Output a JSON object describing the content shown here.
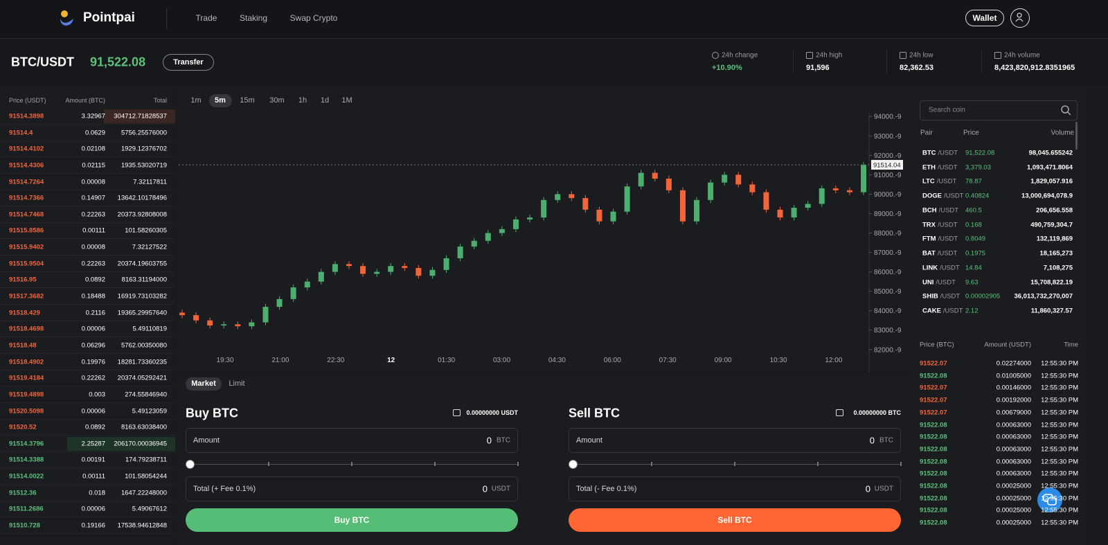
{
  "header": {
    "brand": "Pointpai",
    "nav": [
      "Trade",
      "Staking",
      "Swap Crypto"
    ],
    "wallet": "Wallet"
  },
  "ticker": {
    "pair": "BTC/USDT",
    "price": "91,522.08",
    "transfer": "Transfer",
    "stats": [
      {
        "label": "24h change",
        "value": "+10.90%"
      },
      {
        "label": "24h high",
        "value": "91,596"
      },
      {
        "label": "24h low",
        "value": "82,362.53"
      },
      {
        "label": "24h volume",
        "value": "8,423,820,912.8351965"
      }
    ]
  },
  "order_book": {
    "columns": [
      "Price (USDT)",
      "Amount (BTC)",
      "Total"
    ],
    "asks": [
      [
        "91514.3898",
        "3.32967",
        "304712.71828537"
      ],
      [
        "91514.4",
        "0.0629",
        "5756.25576000"
      ],
      [
        "91514.4102",
        "0.02108",
        "1929.12376702"
      ],
      [
        "91514.4306",
        "0.02115",
        "1935.53020719"
      ],
      [
        "91514.7264",
        "0.00008",
        "7.32117811"
      ],
      [
        "91514.7366",
        "0.14907",
        "13642.10178496"
      ],
      [
        "91514.7468",
        "0.22263",
        "20373.92808008"
      ],
      [
        "91515.8586",
        "0.00111",
        "101.58260305"
      ],
      [
        "91515.9402",
        "0.00008",
        "7.32127522"
      ],
      [
        "91515.9504",
        "0.22263",
        "20374.19603755"
      ],
      [
        "91516.95",
        "0.0892",
        "8163.31194000"
      ],
      [
        "91517.3682",
        "0.18488",
        "16919.73103282"
      ],
      [
        "91518.429",
        "0.2116",
        "19365.29957640"
      ],
      [
        "91518.4698",
        "0.00006",
        "5.49110819"
      ],
      [
        "91518.48",
        "0.06296",
        "5762.00350080"
      ],
      [
        "91518.4902",
        "0.19976",
        "18281.73360235"
      ],
      [
        "91519.4184",
        "0.22262",
        "20374.05292421"
      ],
      [
        "91519.4898",
        "0.003",
        "274.55846940"
      ],
      [
        "91520.5098",
        "0.00006",
        "5.49123059"
      ],
      [
        "91520.52",
        "0.0892",
        "8163.63038400"
      ]
    ],
    "bids": [
      [
        "91514.3796",
        "2.25287",
        "206170.00036945"
      ],
      [
        "91514.3388",
        "0.00191",
        "174.79238711"
      ],
      [
        "91514.0022",
        "0.00111",
        "101.58054244"
      ],
      [
        "91512.36",
        "0.018",
        "1647.22248000"
      ],
      [
        "91511.2686",
        "0.00006",
        "5.49067612"
      ],
      [
        "91510.728",
        "0.19166",
        "17538.94612848"
      ]
    ]
  },
  "chart_data": {
    "type": "candlestick",
    "intervals": [
      "1m",
      "5m",
      "15m",
      "30m",
      "1h",
      "1d",
      "1M"
    ],
    "active_interval": 1,
    "x_labels": [
      "19:30",
      "21:00",
      "22:30",
      "12",
      "01:30",
      "03:00",
      "04:30",
      "06:00",
      "07:30",
      "09:00",
      "10:30",
      "12:00"
    ],
    "up_color": "#4caf6e",
    "down_color": "#f2643a",
    "ylim": [
      81600,
      94400
    ],
    "yticks": [
      {
        "value": 94000,
        "label": "94000.-9"
      },
      {
        "value": 93000,
        "label": "93000.-9"
      },
      {
        "value": 92000,
        "label": "92000.-9"
      },
      {
        "value": 91000,
        "label": "91000.-9"
      },
      {
        "value": 90000,
        "label": "90000.-9"
      },
      {
        "value": 89000,
        "label": "89000.-9"
      },
      {
        "value": 88000,
        "label": "88000.-9"
      },
      {
        "value": 87000,
        "label": "87000.-9"
      },
      {
        "value": 86000,
        "label": "86000.-9"
      },
      {
        "value": 85000,
        "label": "85000.-9"
      },
      {
        "value": 84000,
        "label": "84000.-9"
      },
      {
        "value": 83000,
        "label": "83000.-9"
      },
      {
        "value": 82000,
        "label": "82000.-9"
      }
    ],
    "last_price": 91514.04,
    "candles": [
      [
        83900,
        84050,
        83620,
        83770
      ],
      [
        83770,
        83920,
        83350,
        83500
      ],
      [
        83500,
        83650,
        83090,
        83240
      ],
      [
        83240,
        83450,
        83090,
        83300
      ],
      [
        83300,
        83450,
        83050,
        83200
      ],
      [
        83200,
        83550,
        83050,
        83400
      ],
      [
        83400,
        84350,
        83250,
        84200
      ],
      [
        84200,
        84750,
        84050,
        84600
      ],
      [
        84600,
        85350,
        84450,
        85200
      ],
      [
        85200,
        85650,
        85050,
        85500
      ],
      [
        85500,
        86150,
        85350,
        86000
      ],
      [
        86000,
        86550,
        85850,
        86400
      ],
      [
        86400,
        86550,
        86150,
        86300
      ],
      [
        86300,
        86450,
        85750,
        85900
      ],
      [
        85900,
        86150,
        85750,
        86000
      ],
      [
        86000,
        86450,
        85850,
        86300
      ],
      [
        86300,
        86450,
        86050,
        86200
      ],
      [
        86200,
        86350,
        85650,
        85800
      ],
      [
        85800,
        86250,
        85650,
        86100
      ],
      [
        86100,
        86850,
        85950,
        86700
      ],
      [
        86700,
        87450,
        86550,
        87300
      ],
      [
        87300,
        87750,
        87150,
        87600
      ],
      [
        87600,
        88150,
        87450,
        88000
      ],
      [
        88000,
        88350,
        87850,
        88200
      ],
      [
        88200,
        88850,
        88050,
        88700
      ],
      [
        88700,
        88950,
        88550,
        88800
      ],
      [
        88800,
        89850,
        88650,
        89700
      ],
      [
        89700,
        90150,
        89550,
        90000
      ],
      [
        90000,
        90150,
        89650,
        89800
      ],
      [
        89800,
        89950,
        89050,
        89200
      ],
      [
        89200,
        89350,
        88450,
        88600
      ],
      [
        88600,
        89250,
        88450,
        89100
      ],
      [
        89100,
        90550,
        88950,
        90400
      ],
      [
        90400,
        91250,
        90250,
        91100
      ],
      [
        91100,
        91250,
        90650,
        90800
      ],
      [
        90800,
        90950,
        90050,
        90200
      ],
      [
        90200,
        90350,
        88450,
        88600
      ],
      [
        88600,
        89850,
        88450,
        89700
      ],
      [
        89700,
        90750,
        89550,
        90600
      ],
      [
        90600,
        91150,
        90450,
        91000
      ],
      [
        91000,
        91150,
        90350,
        90500
      ],
      [
        90500,
        90650,
        89950,
        90100
      ],
      [
        90100,
        90250,
        89050,
        89200
      ],
      [
        89200,
        89350,
        88650,
        88800
      ],
      [
        88800,
        89450,
        88650,
        89300
      ],
      [
        89300,
        89650,
        89150,
        89500
      ],
      [
        89500,
        90450,
        89350,
        90300
      ],
      [
        90300,
        90450,
        90050,
        90200
      ],
      [
        90200,
        90350,
        89950,
        90100
      ],
      [
        90100,
        91650,
        89950,
        91500
      ]
    ]
  },
  "coin_list": {
    "search_placeholder": "Search coin",
    "columns": [
      "Pair",
      "Price",
      "Volume"
    ],
    "rows": [
      [
        "BTC",
        "/USDT",
        "91,522.08",
        "98,045.655242"
      ],
      [
        "ETH",
        "/USDT",
        "3,379.03",
        "1,093,471.8064"
      ],
      [
        "LTC",
        "/USDT",
        "78.87",
        "1,829,057.916"
      ],
      [
        "DOGE",
        "/USDT",
        "0.40824",
        "13,000,694,078.9"
      ],
      [
        "BCH",
        "/USDT",
        "460.5",
        "206,656.558"
      ],
      [
        "TRX",
        "/USDT",
        "0.168",
        "490,759,304.7"
      ],
      [
        "FTM",
        "/USDT",
        "0.8049",
        "132,119,869"
      ],
      [
        "BAT",
        "/USDT",
        "0.1975",
        "18,165,273"
      ],
      [
        "LINK",
        "/USDT",
        "14.84",
        "7,108,275"
      ],
      [
        "UNI",
        "/USDT",
        "9.63",
        "15,708,822.19"
      ],
      [
        "SHIB",
        "/USDT",
        "0.00002905",
        "36,013,732,270,007"
      ],
      [
        "CAKE",
        "/USDT",
        "2.12",
        "11,860,327.57"
      ]
    ]
  },
  "trades": {
    "columns": [
      "Price (BTC)",
      "Amount (USDT)",
      "Time"
    ],
    "rows": [
      {
        "price": "91522.07",
        "amount": "0.02274000",
        "time": "12:55:30 PM",
        "side": "sell"
      },
      {
        "price": "91522.08",
        "amount": "0.01005000",
        "time": "12:55:30 PM",
        "side": "buy"
      },
      {
        "price": "91522.07",
        "amount": "0.00146000",
        "time": "12:55:30 PM",
        "side": "sell"
      },
      {
        "price": "91522.07",
        "amount": "0.00192000",
        "time": "12:55:30 PM",
        "side": "sell"
      },
      {
        "price": "91522.07",
        "amount": "0.00679000",
        "time": "12:55:30 PM",
        "side": "sell"
      },
      {
        "price": "91522.08",
        "amount": "0.00063000",
        "time": "12:55:30 PM",
        "side": "buy"
      },
      {
        "price": "91522.08",
        "amount": "0.00063000",
        "time": "12:55:30 PM",
        "side": "buy"
      },
      {
        "price": "91522.08",
        "amount": "0.00063000",
        "time": "12:55:30 PM",
        "side": "buy"
      },
      {
        "price": "91522.08",
        "amount": "0.00063000",
        "time": "12:55:30 PM",
        "side": "buy"
      },
      {
        "price": "91522.08",
        "amount": "0.00063000",
        "time": "12:55:30 PM",
        "side": "buy"
      },
      {
        "price": "91522.08",
        "amount": "0.00025000",
        "time": "12:55:30 PM",
        "side": "buy"
      },
      {
        "price": "91522.08",
        "amount": "0.00025000",
        "time": "12:55:30 PM",
        "side": "buy"
      },
      {
        "price": "91522.08",
        "amount": "0.00025000",
        "time": "12:55:30 PM",
        "side": "buy"
      },
      {
        "price": "91522.08",
        "amount": "0.00025000",
        "time": "12:55:30 PM",
        "side": "buy"
      }
    ]
  },
  "order_form": {
    "tabs": [
      "Market",
      "Limit"
    ],
    "buy": {
      "title": "Buy BTC",
      "balance": "0.00000000 USDT",
      "amount_label": "Amount",
      "amount_value": "0",
      "amount_unit": "BTC",
      "total_label": "Total (+ Fee 0.1%)",
      "total_value": "0",
      "total_unit": "USDT",
      "button": "Buy BTC"
    },
    "sell": {
      "title": "Sell BTC",
      "balance": "0.00000000 BTC",
      "amount_label": "Amount",
      "amount_value": "0",
      "amount_unit": "BTC",
      "total_label": "Total (- Fee 0.1%)",
      "total_value": "0",
      "total_unit": "USDT",
      "button": "Sell BTC"
    }
  }
}
